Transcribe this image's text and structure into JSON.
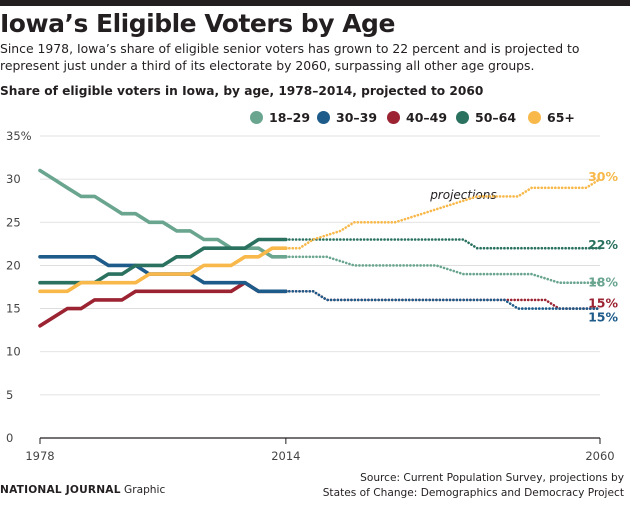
{
  "header": {
    "title": "Iowa’s Eligible Voters by Age",
    "subtitle": "Since 1978, Iowa’s share of eligible senior voters has grown to 22 percent and is projected to represent just under a third of its electorate by 2060, surpassing all other age groups."
  },
  "footer": {
    "brand": "NATIONAL JOURNAL",
    "brand_suffix": "Graphic",
    "source_line1": "Source: Current Population Survey, projections by",
    "source_line2": "States of Change: Demographics and Democracy Project"
  },
  "chart_data": {
    "type": "line",
    "title": "Share of eligible voters in Iowa, by age, 1978–2014, projected to 2060",
    "ylim": [
      0,
      35
    ],
    "yticks": [
      0,
      5,
      10,
      15,
      20,
      25,
      30,
      35
    ],
    "ytick_labels": [
      "0",
      "5",
      "10",
      "15",
      "20",
      "25",
      "30",
      "35%"
    ],
    "xticks": [
      1978,
      2014,
      2060
    ],
    "xlim": [
      1978,
      2060
    ],
    "annotation": "projections",
    "projection_start": 2014,
    "series": [
      {
        "name": "18–29",
        "color": "#6aa58f",
        "end_label": "18%",
        "end_value": 18,
        "actual": [
          [
            1978,
            31
          ],
          [
            1980,
            30
          ],
          [
            1982,
            29
          ],
          [
            1984,
            28
          ],
          [
            1986,
            28
          ],
          [
            1988,
            27
          ],
          [
            1990,
            26
          ],
          [
            1992,
            26
          ],
          [
            1994,
            25
          ],
          [
            1996,
            25
          ],
          [
            1998,
            24
          ],
          [
            2000,
            24
          ],
          [
            2002,
            23
          ],
          [
            2004,
            23
          ],
          [
            2006,
            22
          ],
          [
            2008,
            22
          ],
          [
            2010,
            22
          ],
          [
            2012,
            21
          ],
          [
            2014,
            21
          ]
        ],
        "projected": [
          [
            2014,
            21
          ],
          [
            2020,
            21
          ],
          [
            2024,
            20
          ],
          [
            2030,
            20
          ],
          [
            2036,
            20
          ],
          [
            2040,
            19
          ],
          [
            2046,
            19
          ],
          [
            2050,
            19
          ],
          [
            2054,
            18
          ],
          [
            2060,
            18
          ]
        ]
      },
      {
        "name": "30–39",
        "color": "#1d5b8a",
        "end_label": "15%",
        "end_value": 15,
        "actual": [
          [
            1978,
            21
          ],
          [
            1980,
            21
          ],
          [
            1982,
            21
          ],
          [
            1984,
            21
          ],
          [
            1986,
            21
          ],
          [
            1988,
            20
          ],
          [
            1990,
            20
          ],
          [
            1992,
            20
          ],
          [
            1994,
            19
          ],
          [
            1996,
            19
          ],
          [
            1998,
            19
          ],
          [
            2000,
            19
          ],
          [
            2002,
            18
          ],
          [
            2004,
            18
          ],
          [
            2006,
            18
          ],
          [
            2008,
            18
          ],
          [
            2010,
            17
          ],
          [
            2012,
            17
          ],
          [
            2014,
            17
          ]
        ],
        "projected": [
          [
            2014,
            17
          ],
          [
            2018,
            17
          ],
          [
            2020,
            16
          ],
          [
            2026,
            16
          ],
          [
            2034,
            16
          ],
          [
            2040,
            16
          ],
          [
            2046,
            16
          ],
          [
            2048,
            15
          ],
          [
            2054,
            15
          ],
          [
            2060,
            15
          ]
        ]
      },
      {
        "name": "40–49",
        "color": "#9b2332",
        "end_label": "15%",
        "end_value": 15,
        "actual": [
          [
            1978,
            13
          ],
          [
            1980,
            14
          ],
          [
            1982,
            15
          ],
          [
            1984,
            15
          ],
          [
            1986,
            16
          ],
          [
            1988,
            16
          ],
          [
            1990,
            16
          ],
          [
            1992,
            17
          ],
          [
            1994,
            17
          ],
          [
            1996,
            17
          ],
          [
            1998,
            17
          ],
          [
            2000,
            17
          ],
          [
            2002,
            17
          ],
          [
            2004,
            17
          ],
          [
            2006,
            17
          ],
          [
            2008,
            18
          ],
          [
            2010,
            17
          ],
          [
            2012,
            17
          ],
          [
            2014,
            17
          ]
        ],
        "projected": [
          [
            2014,
            17
          ],
          [
            2018,
            17
          ],
          [
            2020,
            16
          ],
          [
            2026,
            16
          ],
          [
            2034,
            16
          ],
          [
            2040,
            16
          ],
          [
            2046,
            16
          ],
          [
            2052,
            16
          ],
          [
            2054,
            15
          ],
          [
            2060,
            15
          ]
        ]
      },
      {
        "name": "50–64",
        "color": "#2a7160",
        "end_label": "22%",
        "end_value": 22,
        "actual": [
          [
            1978,
            18
          ],
          [
            1980,
            18
          ],
          [
            1982,
            18
          ],
          [
            1984,
            18
          ],
          [
            1986,
            18
          ],
          [
            1988,
            19
          ],
          [
            1990,
            19
          ],
          [
            1992,
            20
          ],
          [
            1994,
            20
          ],
          [
            1996,
            20
          ],
          [
            1998,
            21
          ],
          [
            2000,
            21
          ],
          [
            2002,
            22
          ],
          [
            2004,
            22
          ],
          [
            2006,
            22
          ],
          [
            2008,
            22
          ],
          [
            2010,
            23
          ],
          [
            2012,
            23
          ],
          [
            2014,
            23
          ]
        ],
        "projected": [
          [
            2014,
            23
          ],
          [
            2020,
            23
          ],
          [
            2030,
            23
          ],
          [
            2040,
            23
          ],
          [
            2042,
            22
          ],
          [
            2050,
            22
          ],
          [
            2060,
            22
          ]
        ]
      },
      {
        "name": "65+",
        "color": "#f8b84a",
        "end_label": "30%",
        "end_value": 30,
        "actual": [
          [
            1978,
            17
          ],
          [
            1980,
            17
          ],
          [
            1982,
            17
          ],
          [
            1984,
            18
          ],
          [
            1986,
            18
          ],
          [
            1988,
            18
          ],
          [
            1990,
            18
          ],
          [
            1992,
            18
          ],
          [
            1994,
            19
          ],
          [
            1996,
            19
          ],
          [
            1998,
            19
          ],
          [
            2000,
            19
          ],
          [
            2002,
            20
          ],
          [
            2004,
            20
          ],
          [
            2006,
            20
          ],
          [
            2008,
            21
          ],
          [
            2010,
            21
          ],
          [
            2012,
            22
          ],
          [
            2014,
            22
          ]
        ],
        "projected": [
          [
            2014,
            22
          ],
          [
            2016,
            22
          ],
          [
            2018,
            23
          ],
          [
            2022,
            24
          ],
          [
            2024,
            25
          ],
          [
            2030,
            25
          ],
          [
            2034,
            26
          ],
          [
            2038,
            27
          ],
          [
            2042,
            28
          ],
          [
            2048,
            28
          ],
          [
            2050,
            29
          ],
          [
            2056,
            29
          ],
          [
            2058,
            29
          ],
          [
            2060,
            30
          ]
        ]
      }
    ]
  }
}
